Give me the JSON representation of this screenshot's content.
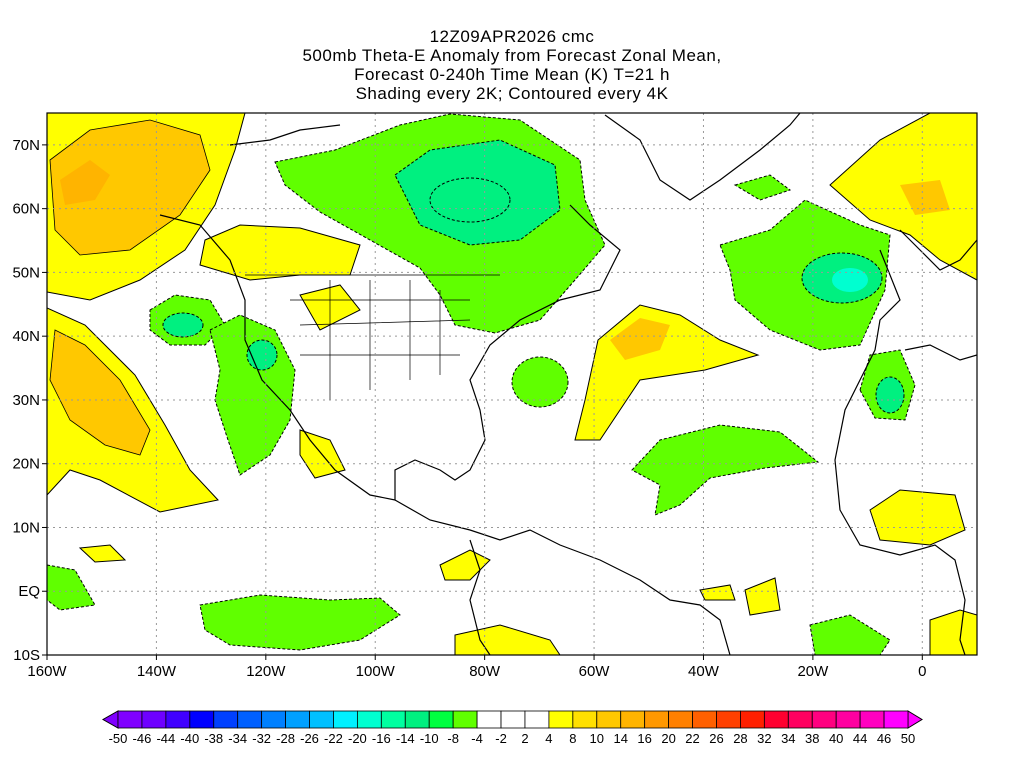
{
  "title": {
    "line1": "12Z09APR2026 cmc",
    "line2": "500mb Theta-E Anomaly from Forecast Zonal Mean,",
    "line3": "Forecast 0-240h Time Mean (K) T=21 h",
    "line4": "Shading every 2K; Contoured every 4K"
  },
  "map": {
    "lon_range": [
      -160,
      10
    ],
    "lat_range": [
      -10,
      75
    ],
    "lon_labels": [
      "160W",
      "140W",
      "120W",
      "100W",
      "80W",
      "60W",
      "40W",
      "20W",
      "0"
    ],
    "lat_labels": [
      "10S",
      "EQ",
      "10N",
      "20N",
      "30N",
      "40N",
      "50N",
      "60N",
      "70N"
    ]
  },
  "colorbar": {
    "labels": [
      "-50",
      "-46",
      "-44",
      "-40",
      "-38",
      "-34",
      "-32",
      "-28",
      "-26",
      "-22",
      "-20",
      "-16",
      "-14",
      "-10",
      "-8",
      "-4",
      "-2",
      "2",
      "4",
      "8",
      "10",
      "14",
      "16",
      "20",
      "22",
      "26",
      "28",
      "32",
      "34",
      "38",
      "40",
      "44",
      "46",
      "50"
    ],
    "colors": [
      "#8000ff",
      "#6e00ff",
      "#4000ff",
      "#0000ff",
      "#0040ff",
      "#0060ff",
      "#0080ff",
      "#00a0ff",
      "#00c0ff",
      "#00f0ff",
      "#00ffd0",
      "#00ffa0",
      "#00f080",
      "#00ff40",
      "#60ff00",
      "#ffffff",
      "#ffffff",
      "#ffffff",
      "#ffff00",
      "#ffe000",
      "#ffc800",
      "#ffb400",
      "#ff9800",
      "#ff8000",
      "#ff6000",
      "#ff4000",
      "#ff2000",
      "#ff0030",
      "#ff0060",
      "#ff0080",
      "#ff00a0",
      "#ff00c0",
      "#ff00ff"
    ],
    "under_color": "#8000ff",
    "over_color": "#ff00ff"
  }
}
